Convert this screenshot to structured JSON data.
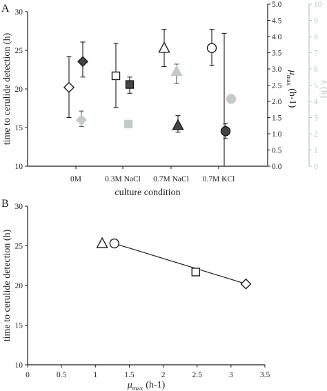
{
  "chart_data": [
    {
      "type": "scatter",
      "panel_label": "A",
      "xlabel": "culture condition",
      "categories": [
        "0M",
        "0.3M NaCl",
        "0.7M NaCl",
        "0.7M KCl"
      ],
      "ylabel": "time to cerulide detection (h)",
      "ylim": [
        10,
        30
      ],
      "yticks": [
        "10",
        "15",
        "20",
        "25",
        "30"
      ],
      "y2label_symbol": "μ",
      "y2label_subscript": "max",
      "y2label_unit": "(h-1)",
      "y2lim": [
        0,
        5
      ],
      "y2ticks": [
        "0.0",
        "0.5",
        "1.0",
        "1.5",
        "2.0",
        "2.5",
        "3.0",
        "3.5",
        "4.0",
        "4.5",
        "5.0"
      ],
      "y3label": "λ (h)",
      "y3lim": [
        0,
        10
      ],
      "y3ticks": [
        "0",
        "1",
        "2",
        "3",
        "4",
        "5",
        "6",
        "7",
        "8",
        "9",
        "10"
      ],
      "y3color": "#b9c3c3",
      "grid": false,
      "series": [
        {
          "axis": "left",
          "marker_color": "#ffffff",
          "points": [
            {
              "category": "0M",
              "marker": "diamond",
              "y": 20.2,
              "err_low": 16.3,
              "err_high": 24.2
            },
            {
              "category": "0.3M NaCl",
              "marker": "square",
              "y": 21.7,
              "err_low": 17.6,
              "err_high": 25.9
            },
            {
              "category": "0.7M NaCl",
              "marker": "triangle",
              "y": 25.3,
              "err_low": 22.9,
              "err_high": 27.7
            },
            {
              "category": "0.7M KCl",
              "marker": "circle",
              "y": 25.3,
              "err_low": 23.0,
              "err_high": 27.7
            }
          ]
        },
        {
          "axis": "right_mu",
          "marker_color": "#444444",
          "points": [
            {
              "category": "0M",
              "marker": "diamond",
              "y": 3.23,
              "err_low": 2.75,
              "err_high": 3.83
            },
            {
              "category": "0.3M NaCl",
              "marker": "square",
              "y": 2.52,
              "err_low": 2.25,
              "err_high": 2.75
            },
            {
              "category": "0.7M NaCl",
              "marker": "triangle",
              "y": 1.26,
              "err_low": 1.05,
              "err_high": 1.56
            },
            {
              "category": "0.7M KCl",
              "marker": "circle",
              "y": 1.08,
              "err_low": 0.85,
              "err_high": 1.32
            }
          ]
        },
        {
          "axis": "right_lambda",
          "marker_color": "#c4caca",
          "points": [
            {
              "category": "0M",
              "marker": "diamond",
              "y": 2.85,
              "err_low": 2.45,
              "err_high": 3.4
            },
            {
              "category": "0.3M NaCl",
              "marker": "square",
              "y": 2.6,
              "err_low": null,
              "err_high": null
            },
            {
              "category": "0.7M NaCl",
              "marker": "triangle",
              "y": 5.85,
              "err_low": 5.1,
              "err_high": 6.3
            },
            {
              "category": "0.7M KCl",
              "marker": "circle",
              "y": 4.15,
              "err_low": null,
              "err_high": null
            }
          ]
        }
      ],
      "extra_error_bars": [
        {
          "category": "0.7M KCl",
          "axis": "left",
          "err_low": 10.0,
          "err_high": 27.2
        }
      ]
    },
    {
      "type": "scatter",
      "panel_label": "B",
      "xlabel_symbol": "μ",
      "xlabel_subscript": "max",
      "xlabel_unit": "(h-1)",
      "xlim": [
        0,
        3.5
      ],
      "xticks": [
        "0",
        "0.5",
        "1",
        "1.5",
        "2",
        "2.5",
        "3",
        "3.5"
      ],
      "ylabel": "time to cerulide detection (h)",
      "ylim": [
        10,
        30
      ],
      "yticks": [
        "10",
        "15",
        "20",
        "25",
        "30"
      ],
      "grid": false,
      "points": [
        {
          "x": 1.1,
          "y": 25.3,
          "marker": "triangle"
        },
        {
          "x": 1.28,
          "y": 25.3,
          "marker": "circle"
        },
        {
          "x": 2.48,
          "y": 21.7,
          "marker": "square"
        },
        {
          "x": 3.22,
          "y": 20.2,
          "marker": "diamond"
        }
      ],
      "trendline": {
        "x": [
          1.28,
          3.22
        ],
        "y": [
          25.3,
          20.2
        ]
      }
    }
  ]
}
